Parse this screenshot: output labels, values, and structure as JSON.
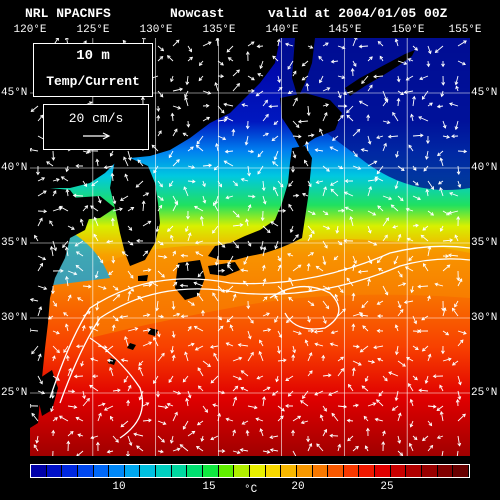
{
  "header": {
    "model": "NRL NPACNFS",
    "product": "Nowcast",
    "valid": "valid at 2004/01/05 00Z"
  },
  "map": {
    "longitude_labels": [
      "120°E",
      "125°E",
      "130°E",
      "135°E",
      "140°E",
      "145°E",
      "150°E",
      "155°E"
    ],
    "latitude_labels": [
      "45°N",
      "40°N",
      "35°N",
      "30°N",
      "25°N"
    ],
    "depth_label": "10  m",
    "field_label": "Temp/Current",
    "vector_scale_label": "20 cm/s"
  },
  "colorbar": {
    "ticks": [
      "10",
      "15",
      "20",
      "25"
    ],
    "unit": "°C",
    "colors": [
      "#0000a8",
      "#0010c8",
      "#0028e0",
      "#0048f0",
      "#0068f8",
      "#0088f8",
      "#00a8f0",
      "#00c0e0",
      "#00d0c0",
      "#00d8a0",
      "#00e070",
      "#10e840",
      "#60f000",
      "#b0f000",
      "#e8f000",
      "#f8d800",
      "#f8b800",
      "#f89800",
      "#f87800",
      "#f85800",
      "#f83800",
      "#f01800",
      "#e00000",
      "#c80000",
      "#b00000",
      "#980000",
      "#800000",
      "#680000"
    ]
  },
  "colors": {
    "land": "#000000",
    "graticule": "#ffffff",
    "vectors": "#ffffff"
  }
}
